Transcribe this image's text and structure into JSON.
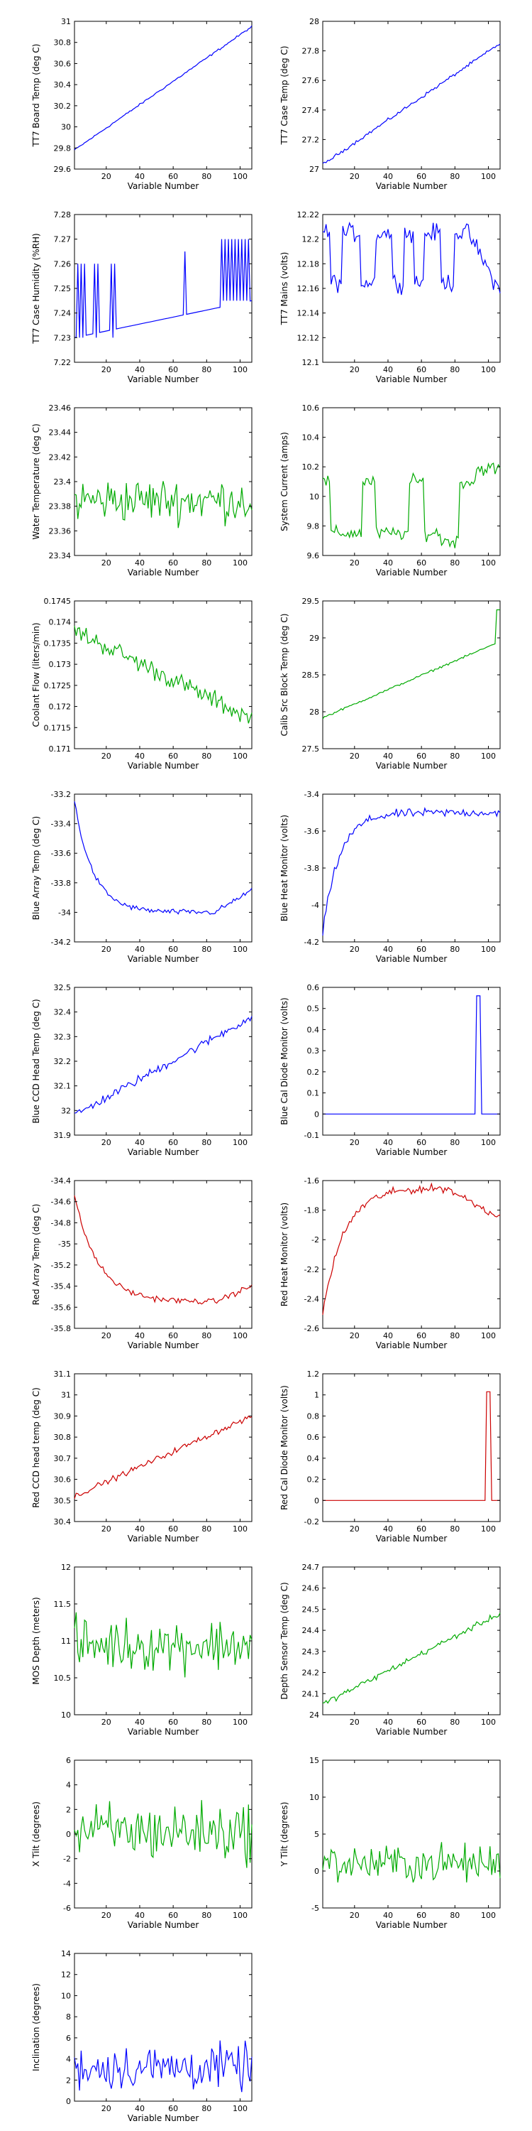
{
  "colors": {
    "blue": "#0000ff",
    "green": "#00aa00",
    "red": "#cc0000",
    "axes": "#000000",
    "background": "#ffffff"
  },
  "chart_data": [
    {
      "type": "line",
      "ylabel": "TT7 Board Temp (deg C)",
      "xlabel": "Variable Number",
      "color": "blue",
      "xlim": [
        1,
        107
      ],
      "ylim": [
        29.6,
        31
      ],
      "xticks": [
        20,
        40,
        60,
        80,
        100
      ],
      "yticks": [
        29.6,
        29.8,
        30,
        30.2,
        30.4,
        30.6,
        30.8,
        31
      ],
      "series": [
        {
          "kind": "trend",
          "start": 29.78,
          "end": 30.95,
          "noise": 0.01
        }
      ]
    },
    {
      "type": "line",
      "ylabel": "TT7 Case Temp (deg C)",
      "xlabel": "Variable Number",
      "color": "blue",
      "xlim": [
        1,
        107
      ],
      "ylim": [
        27,
        28
      ],
      "xticks": [
        20,
        40,
        60,
        80,
        100
      ],
      "yticks": [
        27,
        27.2,
        27.4,
        27.6,
        27.8,
        28
      ],
      "series": [
        {
          "kind": "trend",
          "start": 27.03,
          "end": 27.85,
          "noise": 0.012
        }
      ]
    },
    {
      "type": "line",
      "ylabel": "TT7 Case Humidity (%RH)",
      "xlabel": "Variable Number",
      "color": "blue",
      "xlim": [
        1,
        107
      ],
      "ylim": [
        7.22,
        7.28
      ],
      "xticks": [
        20,
        40,
        60,
        80,
        100
      ],
      "yticks": [
        7.22,
        7.23,
        7.24,
        7.25,
        7.26,
        7.27,
        7.28
      ],
      "series": [
        {
          "kind": "humidity",
          "start": 7.23,
          "end": 7.245
        }
      ]
    },
    {
      "type": "line",
      "ylabel": "TT7 Mains  (volts)",
      "xlabel": "Variable Number",
      "color": "blue",
      "xlim": [
        1,
        107
      ],
      "ylim": [
        12.1,
        12.22
      ],
      "xticks": [
        20,
        40,
        60,
        80,
        100
      ],
      "yticks": [
        12.1,
        12.12,
        12.14,
        12.16,
        12.18,
        12.2,
        12.22
      ],
      "series": [
        {
          "kind": "steps",
          "high": 12.205,
          "low": 12.165,
          "noise": 0.008,
          "blocks": [
            [
              1,
              6,
              "high"
            ],
            [
              6,
              13,
              "low"
            ],
            [
              13,
              24,
              "high"
            ],
            [
              24,
              33,
              "low"
            ],
            [
              33,
              43,
              "high"
            ],
            [
              43,
              50,
              "low"
            ],
            [
              50,
              56,
              "high"
            ],
            [
              56,
              62,
              "low"
            ],
            [
              62,
              72,
              "high"
            ],
            [
              72,
              80,
              "low"
            ],
            [
              80,
              88,
              "high"
            ],
            [
              88,
              107,
              "decline"
            ]
          ]
        }
      ]
    },
    {
      "type": "line",
      "ylabel": "Water Temperature (deg C)",
      "xlabel": "Variable Number",
      "color": "green",
      "xlim": [
        1,
        107
      ],
      "ylim": [
        23.34,
        23.46
      ],
      "xticks": [
        20,
        40,
        60,
        80,
        100
      ],
      "yticks": [
        23.34,
        23.36,
        23.38,
        23.4,
        23.42,
        23.44,
        23.46
      ],
      "series": [
        {
          "kind": "noise",
          "mean": 23.385,
          "amp": 0.015
        }
      ]
    },
    {
      "type": "line",
      "ylabel": "System Current (amps)",
      "xlabel": "Variable Number",
      "color": "green",
      "xlim": [
        1,
        107
      ],
      "ylim": [
        9.6,
        10.6
      ],
      "xticks": [
        20,
        40,
        60,
        80,
        100
      ],
      "yticks": [
        9.6,
        9.8,
        10,
        10.2,
        10.4,
        10.6
      ],
      "series": [
        {
          "kind": "steps",
          "high": 10.1,
          "low": 9.75,
          "noise": 0.05,
          "blocks": [
            [
              1,
              6,
              "high"
            ],
            [
              6,
              13,
              "low"
            ],
            [
              13,
              25,
              "low"
            ],
            [
              25,
              33,
              "high"
            ],
            [
              33,
              53,
              "low"
            ],
            [
              53,
              62,
              "high"
            ],
            [
              62,
              72,
              "low"
            ],
            [
              72,
              83,
              "low2"
            ],
            [
              83,
              93,
              "high"
            ],
            [
              93,
              100,
              "high2"
            ],
            [
              100,
              107,
              "high2"
            ]
          ]
        }
      ]
    },
    {
      "type": "line",
      "ylabel": "Coolant Flow (liters/min)",
      "xlabel": "Variable Number",
      "color": "green",
      "xlim": [
        1,
        107
      ],
      "ylim": [
        0.171,
        0.1745
      ],
      "xticks": [
        20,
        40,
        60,
        80,
        100
      ],
      "yticks": [
        0.171,
        0.1715,
        0.172,
        0.1725,
        0.173,
        0.1735,
        0.174,
        0.1745
      ],
      "series": [
        {
          "kind": "trend",
          "start": 0.1738,
          "end": 0.1717,
          "noise": 0.00025
        }
      ]
    },
    {
      "type": "line",
      "ylabel": "Calib Src Block Temp (deg C)",
      "xlabel": "Variable Number",
      "color": "green",
      "xlim": [
        1,
        107
      ],
      "ylim": [
        27.5,
        29.5
      ],
      "xticks": [
        20,
        40,
        60,
        80,
        100
      ],
      "yticks": [
        27.5,
        28,
        28.5,
        29,
        29.5
      ],
      "series": [
        {
          "kind": "trend",
          "start": 27.92,
          "end": 28.95,
          "noise": 0.015,
          "tail": 29.38
        }
      ]
    },
    {
      "type": "line",
      "ylabel": "Blue Array Temp (deg C)",
      "xlabel": "Variable Number",
      "color": "blue",
      "xlim": [
        1,
        107
      ],
      "ylim": [
        -34.2,
        -33.2
      ],
      "xticks": [
        20,
        40,
        60,
        80,
        100
      ],
      "yticks": [
        -34.2,
        -34,
        -33.8,
        -33.6,
        -33.4,
        -33.2
      ],
      "series": [
        {
          "kind": "decay",
          "start": -33.25,
          "end": -34.0,
          "rate": 0.09,
          "noise": 0.02,
          "rise": -33.85
        }
      ]
    },
    {
      "type": "line",
      "ylabel": "Blue Heat Monitor (volts)",
      "xlabel": "Variable Number",
      "color": "blue",
      "xlim": [
        1,
        107
      ],
      "ylim": [
        -4.2,
        -3.4
      ],
      "xticks": [
        20,
        40,
        60,
        80,
        100
      ],
      "yticks": [
        -4.2,
        -4,
        -3.8,
        -3.6,
        -3.4
      ],
      "series": [
        {
          "kind": "rise",
          "start": -4.15,
          "end": -3.5,
          "rate": 0.1,
          "noise": 0.025
        }
      ]
    },
    {
      "type": "line",
      "ylabel": "Blue CCD Head Temp (deg C)",
      "xlabel": "Variable Number",
      "color": "blue",
      "xlim": [
        1,
        107
      ],
      "ylim": [
        31.9,
        32.5
      ],
      "xticks": [
        20,
        40,
        60,
        80,
        100
      ],
      "yticks": [
        31.9,
        32,
        32.1,
        32.2,
        32.3,
        32.4,
        32.5
      ],
      "series": [
        {
          "kind": "trend",
          "start": 31.98,
          "end": 32.38,
          "noise": 0.02
        }
      ]
    },
    {
      "type": "line",
      "ylabel": "Blue Cal Diode Monitor (volts)",
      "xlabel": "Variable Number",
      "color": "blue",
      "xlim": [
        1,
        107
      ],
      "ylim": [
        -0.1,
        0.6
      ],
      "xticks": [
        20,
        40,
        60,
        80,
        100
      ],
      "yticks": [
        -0.1,
        0,
        0.1,
        0.2,
        0.3,
        0.4,
        0.5,
        0.6
      ],
      "series": [
        {
          "kind": "spike",
          "base": 0,
          "peak": 0.56,
          "at": [
            93,
            95
          ]
        }
      ]
    },
    {
      "type": "line",
      "ylabel": "Red Array Temp (deg C)",
      "xlabel": "Variable Number",
      "color": "red",
      "xlim": [
        1,
        107
      ],
      "ylim": [
        -35.8,
        -34.4
      ],
      "xticks": [
        20,
        40,
        60,
        80,
        100
      ],
      "yticks": [
        -35.8,
        -35.6,
        -35.4,
        -35.2,
        -35,
        -34.8,
        -34.6,
        -34.4
      ],
      "series": [
        {
          "kind": "decay",
          "start": -34.55,
          "end": -35.55,
          "rate": 0.07,
          "noise": 0.03,
          "rise": -35.4
        }
      ]
    },
    {
      "type": "line",
      "ylabel": "Red Heat Monitor (volts)",
      "xlabel": "Variable Number",
      "color": "red",
      "xlim": [
        1,
        107
      ],
      "ylim": [
        -2.6,
        -1.6
      ],
      "xticks": [
        20,
        40,
        60,
        80,
        100
      ],
      "yticks": [
        -2.6,
        -2.4,
        -2.2,
        -2,
        -1.8,
        -1.6
      ],
      "series": [
        {
          "kind": "hump",
          "start": -2.5,
          "peak": -1.65,
          "end": -1.85,
          "noise": 0.03
        }
      ]
    },
    {
      "type": "line",
      "ylabel": "Red CCD head temp (deg C)",
      "xlabel": "Variable Number",
      "color": "red",
      "xlim": [
        1,
        107
      ],
      "ylim": [
        30.4,
        31.1
      ],
      "xticks": [
        20,
        40,
        60,
        80,
        100
      ],
      "yticks": [
        30.4,
        30.5,
        30.6,
        30.7,
        30.8,
        30.9,
        31,
        31.1
      ],
      "series": [
        {
          "kind": "trend",
          "start": 30.52,
          "end": 30.9,
          "noise": 0.015
        }
      ]
    },
    {
      "type": "line",
      "ylabel": "Red Cal Diode Monitor (volts)",
      "xlabel": "Variable Number",
      "color": "red",
      "xlim": [
        1,
        107
      ],
      "ylim": [
        -0.2,
        1.2
      ],
      "xticks": [
        20,
        40,
        60,
        80,
        100
      ],
      "yticks": [
        -0.2,
        0,
        0.2,
        0.4,
        0.6,
        0.8,
        1,
        1.2
      ],
      "series": [
        {
          "kind": "spike",
          "base": 0,
          "peak": 1.03,
          "at": [
            99,
            101
          ]
        }
      ]
    },
    {
      "type": "line",
      "ylabel": "MOS Depth  (meters)",
      "xlabel": "Variable Number",
      "color": "green",
      "xlim": [
        1,
        107
      ],
      "ylim": [
        10,
        12
      ],
      "xticks": [
        20,
        40,
        60,
        80,
        100
      ],
      "yticks": [
        10,
        10.5,
        11,
        11.5,
        12
      ],
      "series": [
        {
          "kind": "noise",
          "mean": 10.95,
          "amp": 0.3
        }
      ]
    },
    {
      "type": "line",
      "ylabel": "Depth Sensor Temp (deg C)",
      "xlabel": "Variable Number",
      "color": "green",
      "xlim": [
        1,
        107
      ],
      "ylim": [
        24,
        24.7
      ],
      "xticks": [
        20,
        40,
        60,
        80,
        100
      ],
      "yticks": [
        24,
        24.1,
        24.2,
        24.3,
        24.4,
        24.5,
        24.6,
        24.7
      ],
      "series": [
        {
          "kind": "trend",
          "start": 24.05,
          "end": 24.48,
          "noise": 0.015
        }
      ]
    },
    {
      "type": "line",
      "ylabel": "X Tilt  (degrees)",
      "xlabel": "Variable Number",
      "color": "green",
      "xlim": [
        1,
        107
      ],
      "ylim": [
        -6,
        6
      ],
      "xticks": [
        20,
        40,
        60,
        80,
        100
      ],
      "yticks": [
        -6,
        -4,
        -2,
        0,
        2,
        4,
        6
      ],
      "series": [
        {
          "kind": "noise",
          "mean": 0.2,
          "amp": 2.0
        }
      ]
    },
    {
      "type": "line",
      "ylabel": "Y Tilt  (degrees)",
      "xlabel": "Variable Number",
      "color": "green",
      "xlim": [
        1,
        107
      ],
      "ylim": [
        -5,
        15
      ],
      "xticks": [
        20,
        40,
        60,
        80,
        100
      ],
      "yticks": [
        -5,
        0,
        5,
        10,
        15
      ],
      "series": [
        {
          "kind": "noise",
          "mean": 1,
          "amp": 2.2
        }
      ]
    },
    {
      "type": "line",
      "ylabel": "Inclination  (degrees)",
      "xlabel": "Variable Number",
      "color": "blue",
      "xlim": [
        1,
        107
      ],
      "ylim": [
        0,
        14
      ],
      "xticks": [
        20,
        40,
        60,
        80,
        100
      ],
      "yticks": [
        0,
        2,
        4,
        6,
        8,
        10,
        12,
        14
      ],
      "series": [
        {
          "kind": "noise",
          "mean": 3.2,
          "amp": 1.8,
          "floor": 0.3
        }
      ]
    }
  ]
}
